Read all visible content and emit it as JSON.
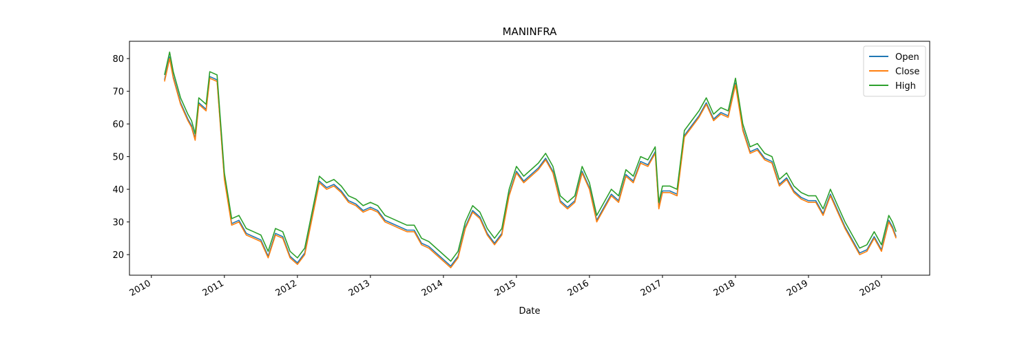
{
  "chart_data": {
    "type": "line",
    "title": "MANINFRA",
    "x_label": "Date",
    "x": [
      2010.18,
      2010.25,
      2010.3,
      2010.4,
      2010.5,
      2010.55,
      2010.6,
      2010.65,
      2010.75,
      2010.8,
      2010.9,
      2010.95,
      2011.0,
      2011.1,
      2011.2,
      2011.3,
      2011.4,
      2011.5,
      2011.6,
      2011.7,
      2011.8,
      2011.9,
      2012.0,
      2012.1,
      2012.2,
      2012.3,
      2012.4,
      2012.5,
      2012.6,
      2012.7,
      2012.8,
      2012.9,
      2013.0,
      2013.1,
      2013.2,
      2013.3,
      2013.4,
      2013.5,
      2013.6,
      2013.7,
      2013.8,
      2013.9,
      2014.0,
      2014.1,
      2014.2,
      2014.3,
      2014.4,
      2014.5,
      2014.6,
      2014.7,
      2014.8,
      2014.9,
      2015.0,
      2015.1,
      2015.2,
      2015.3,
      2015.4,
      2015.5,
      2015.6,
      2015.7,
      2015.8,
      2015.9,
      2016.0,
      2016.1,
      2016.2,
      2016.3,
      2016.4,
      2016.5,
      2016.6,
      2016.7,
      2016.8,
      2016.9,
      2016.95,
      2017.0,
      2017.1,
      2017.2,
      2017.3,
      2017.4,
      2017.5,
      2017.6,
      2017.7,
      2017.8,
      2017.9,
      2018.0,
      2018.1,
      2018.2,
      2018.3,
      2018.4,
      2018.5,
      2018.6,
      2018.7,
      2018.8,
      2018.9,
      2019.0,
      2019.1,
      2019.2,
      2019.3,
      2019.4,
      2019.5,
      2019.6,
      2019.7,
      2019.8,
      2019.9,
      2020.0,
      2020.1,
      2020.15,
      2020.2
    ],
    "series": [
      {
        "name": "Open",
        "color": "#1f77b4",
        "values": [
          73.5,
          80.5,
          74.5,
          66.5,
          61.5,
          59.5,
          55.5,
          66.5,
          64.5,
          74.5,
          73.5,
          58.5,
          43.5,
          29.5,
          30.5,
          26.5,
          25.5,
          24.5,
          19.5,
          26.5,
          25.5,
          19.5,
          17.5,
          20.5,
          31.5,
          42.5,
          40.5,
          41.5,
          39.5,
          36.5,
          35.5,
          33.5,
          34.5,
          33.5,
          30.5,
          29.5,
          28.5,
          27.5,
          27.5,
          23.5,
          22.5,
          20.5,
          18.5,
          16.5,
          19.5,
          28.5,
          33.5,
          31.5,
          26.5,
          23.5,
          26.5,
          38.5,
          45.5,
          42.5,
          44.5,
          46.5,
          49.5,
          45.5,
          36.5,
          34.5,
          36.5,
          45.5,
          40.5,
          30.5,
          34.5,
          38.5,
          36.5,
          44.5,
          42.5,
          48.5,
          47.5,
          51.5,
          34.5,
          39.5,
          39.5,
          38.5,
          56.5,
          59.5,
          62.5,
          66.5,
          61.5,
          63.5,
          62.5,
          72.5,
          58.5,
          51.5,
          52.5,
          49.5,
          48.5,
          41.5,
          43.5,
          39.5,
          37.5,
          36.5,
          36.5,
          32.5,
          38.5,
          33.5,
          28.5,
          24.5,
          20.5,
          21.5,
          25.5,
          21.5,
          30.5,
          28.5,
          25.5
        ]
      },
      {
        "name": "Close",
        "color": "#ff7f0e",
        "values": [
          73,
          80,
          74,
          66,
          61,
          59,
          55,
          66,
          64,
          74,
          73,
          58,
          43,
          29,
          30,
          26,
          25,
          24,
          19,
          26,
          25,
          19,
          17,
          20,
          31,
          42,
          40,
          41,
          39,
          36,
          35,
          33,
          34,
          33,
          30,
          29,
          28,
          27,
          27,
          23,
          22,
          20,
          18,
          16,
          19,
          28,
          33,
          31,
          26,
          23,
          26,
          38,
          45,
          42,
          44,
          46,
          49,
          45,
          36,
          34,
          36,
          45,
          40,
          30,
          34,
          38,
          36,
          44,
          42,
          48,
          47,
          51,
          34,
          39,
          39,
          38,
          56,
          59,
          62,
          66,
          61,
          63,
          62,
          72,
          58,
          51,
          52,
          49,
          48,
          41,
          43,
          39,
          37,
          36,
          36,
          32,
          38,
          33,
          28,
          24,
          20,
          21,
          25,
          21,
          30,
          28,
          25
        ]
      },
      {
        "name": "High",
        "color": "#2ca02c",
        "values": [
          75,
          82,
          76,
          68,
          63,
          61,
          57,
          68,
          66,
          76,
          75,
          60,
          45,
          31,
          32,
          28,
          27,
          26,
          21,
          28,
          27,
          21,
          19,
          22,
          33,
          44,
          42,
          43,
          41,
          38,
          37,
          35,
          36,
          35,
          32,
          31,
          30,
          29,
          29,
          25,
          24,
          22,
          20,
          18,
          21,
          30,
          35,
          33,
          28,
          25,
          28,
          40,
          47,
          44,
          46,
          48,
          51,
          47,
          38,
          36,
          38,
          47,
          42,
          32,
          36,
          40,
          38,
          46,
          44,
          50,
          49,
          53,
          36,
          41,
          41,
          40,
          58,
          61,
          64,
          68,
          63,
          65,
          64,
          74,
          60,
          53,
          54,
          51,
          50,
          43,
          45,
          41,
          39,
          38,
          38,
          34,
          40,
          35,
          30,
          26,
          22,
          23,
          27,
          23,
          32,
          30,
          27
        ]
      }
    ],
    "xlim": [
      2009.7,
      2020.66
    ],
    "xticks": [
      2010,
      2011,
      2012,
      2013,
      2014,
      2015,
      2016,
      2017,
      2018,
      2019,
      2020
    ],
    "ylim": [
      13.7,
      85.3
    ],
    "yticks": [
      20,
      30,
      40,
      50,
      60,
      70,
      80
    ],
    "legend": "upper right"
  }
}
